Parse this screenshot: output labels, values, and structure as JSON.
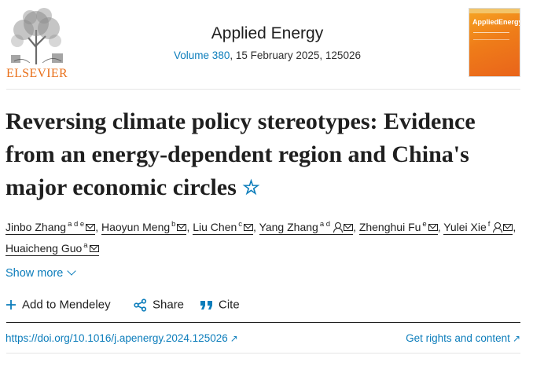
{
  "header": {
    "publisher": "ELSEVIER",
    "journal_title": "Applied Energy",
    "volume_link": "Volume 380",
    "issue_info": ", 15 February 2025, 125026",
    "cover_title": "AppliedEnergy"
  },
  "article": {
    "title": "Reversing climate policy stereotypes: Evidence from an energy-dependent region and China's major economic circles"
  },
  "authors": [
    {
      "name": "Jinbo Zhang",
      "affil": "a d e",
      "sep": ","
    },
    {
      "name": "Haoyun Meng",
      "affil": "b",
      "sep": ","
    },
    {
      "name": "Liu Chen",
      "affil": "c",
      "sep": ","
    },
    {
      "name": "Yang Zhang",
      "affil": "a d",
      "sep": ","
    },
    {
      "name": "Zhenghui Fu",
      "affil": "e",
      "sep": ","
    },
    {
      "name": "Yulei Xie",
      "affil": "f",
      "sep": ","
    },
    {
      "name": "Huaicheng Guo",
      "affil": "a",
      "sep": ""
    }
  ],
  "show_more": "Show more",
  "actions": {
    "mendeley": "Add to Mendeley",
    "share": "Share",
    "cite": "Cite"
  },
  "links": {
    "doi": "https://doi.org/10.1016/j.apenergy.2024.125026",
    "rights": "Get rights and content"
  },
  "colors": {
    "link": "#0c7dbb",
    "elsevier_orange": "#e9711c"
  }
}
